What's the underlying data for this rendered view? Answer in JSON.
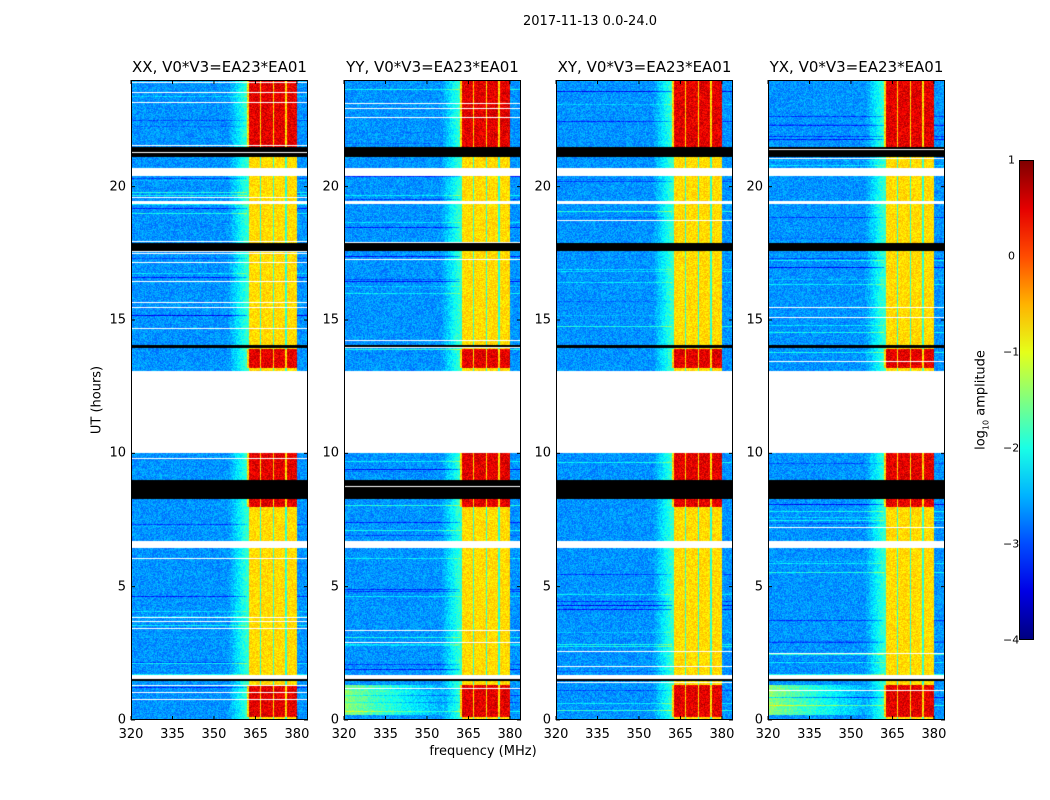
{
  "figure": {
    "suptitle": "2017-11-13 0.0-24.0",
    "ylabel": "UT (hours)",
    "xlabel": "frequency (MHz)"
  },
  "colorbar": {
    "label_main": "log",
    "label_sub": "10",
    "label_rest": " amplitude",
    "ticks": [
      "1",
      "0",
      "−1",
      "−2",
      "−3",
      "−4"
    ],
    "range": [
      -4,
      1
    ],
    "colormap": "jet"
  },
  "chart_data": [
    {
      "type": "heatmap",
      "title": "XX, V0*V3=EA23*EA01",
      "polarization": "XX"
    },
    {
      "type": "heatmap",
      "title": "YY, V0*V3=EA23*EA01",
      "polarization": "YY"
    },
    {
      "type": "heatmap",
      "title": "XY, V0*V3=EA23*EA01",
      "polarization": "XY"
    },
    {
      "type": "heatmap",
      "title": "YX, V0*V3=EA23*EA01",
      "polarization": "YX"
    }
  ],
  "axes": {
    "xlim": [
      320,
      384
    ],
    "ylim": [
      0,
      24
    ],
    "xticks": [
      "320",
      "335",
      "350",
      "365",
      "380"
    ],
    "xtick_values": [
      320,
      335,
      350,
      365,
      380
    ],
    "yticks": [
      "0",
      "5",
      "10",
      "15",
      "20"
    ],
    "ytick_values": [
      0,
      5,
      10,
      15,
      20
    ],
    "flagged_gaps_hours": [
      [
        10.0,
        13.1
      ],
      [
        20.4,
        20.7
      ],
      [
        19.35,
        19.45
      ],
      [
        6.45,
        6.7
      ],
      [
        1.55,
        1.7
      ]
    ],
    "zero_rows_hours": [
      [
        21.1,
        21.5
      ],
      [
        8.3,
        9.0
      ],
      [
        17.6,
        17.9
      ],
      [
        13.95,
        14.05
      ],
      [
        1.45,
        1.55
      ]
    ],
    "rfi_band_mhz": [
      362,
      380
    ],
    "strong_rfi_hours": [
      [
        0.1,
        1.3
      ],
      [
        13.2,
        13.9
      ],
      [
        21.5,
        24.0
      ],
      [
        8.0,
        10.0
      ]
    ]
  }
}
